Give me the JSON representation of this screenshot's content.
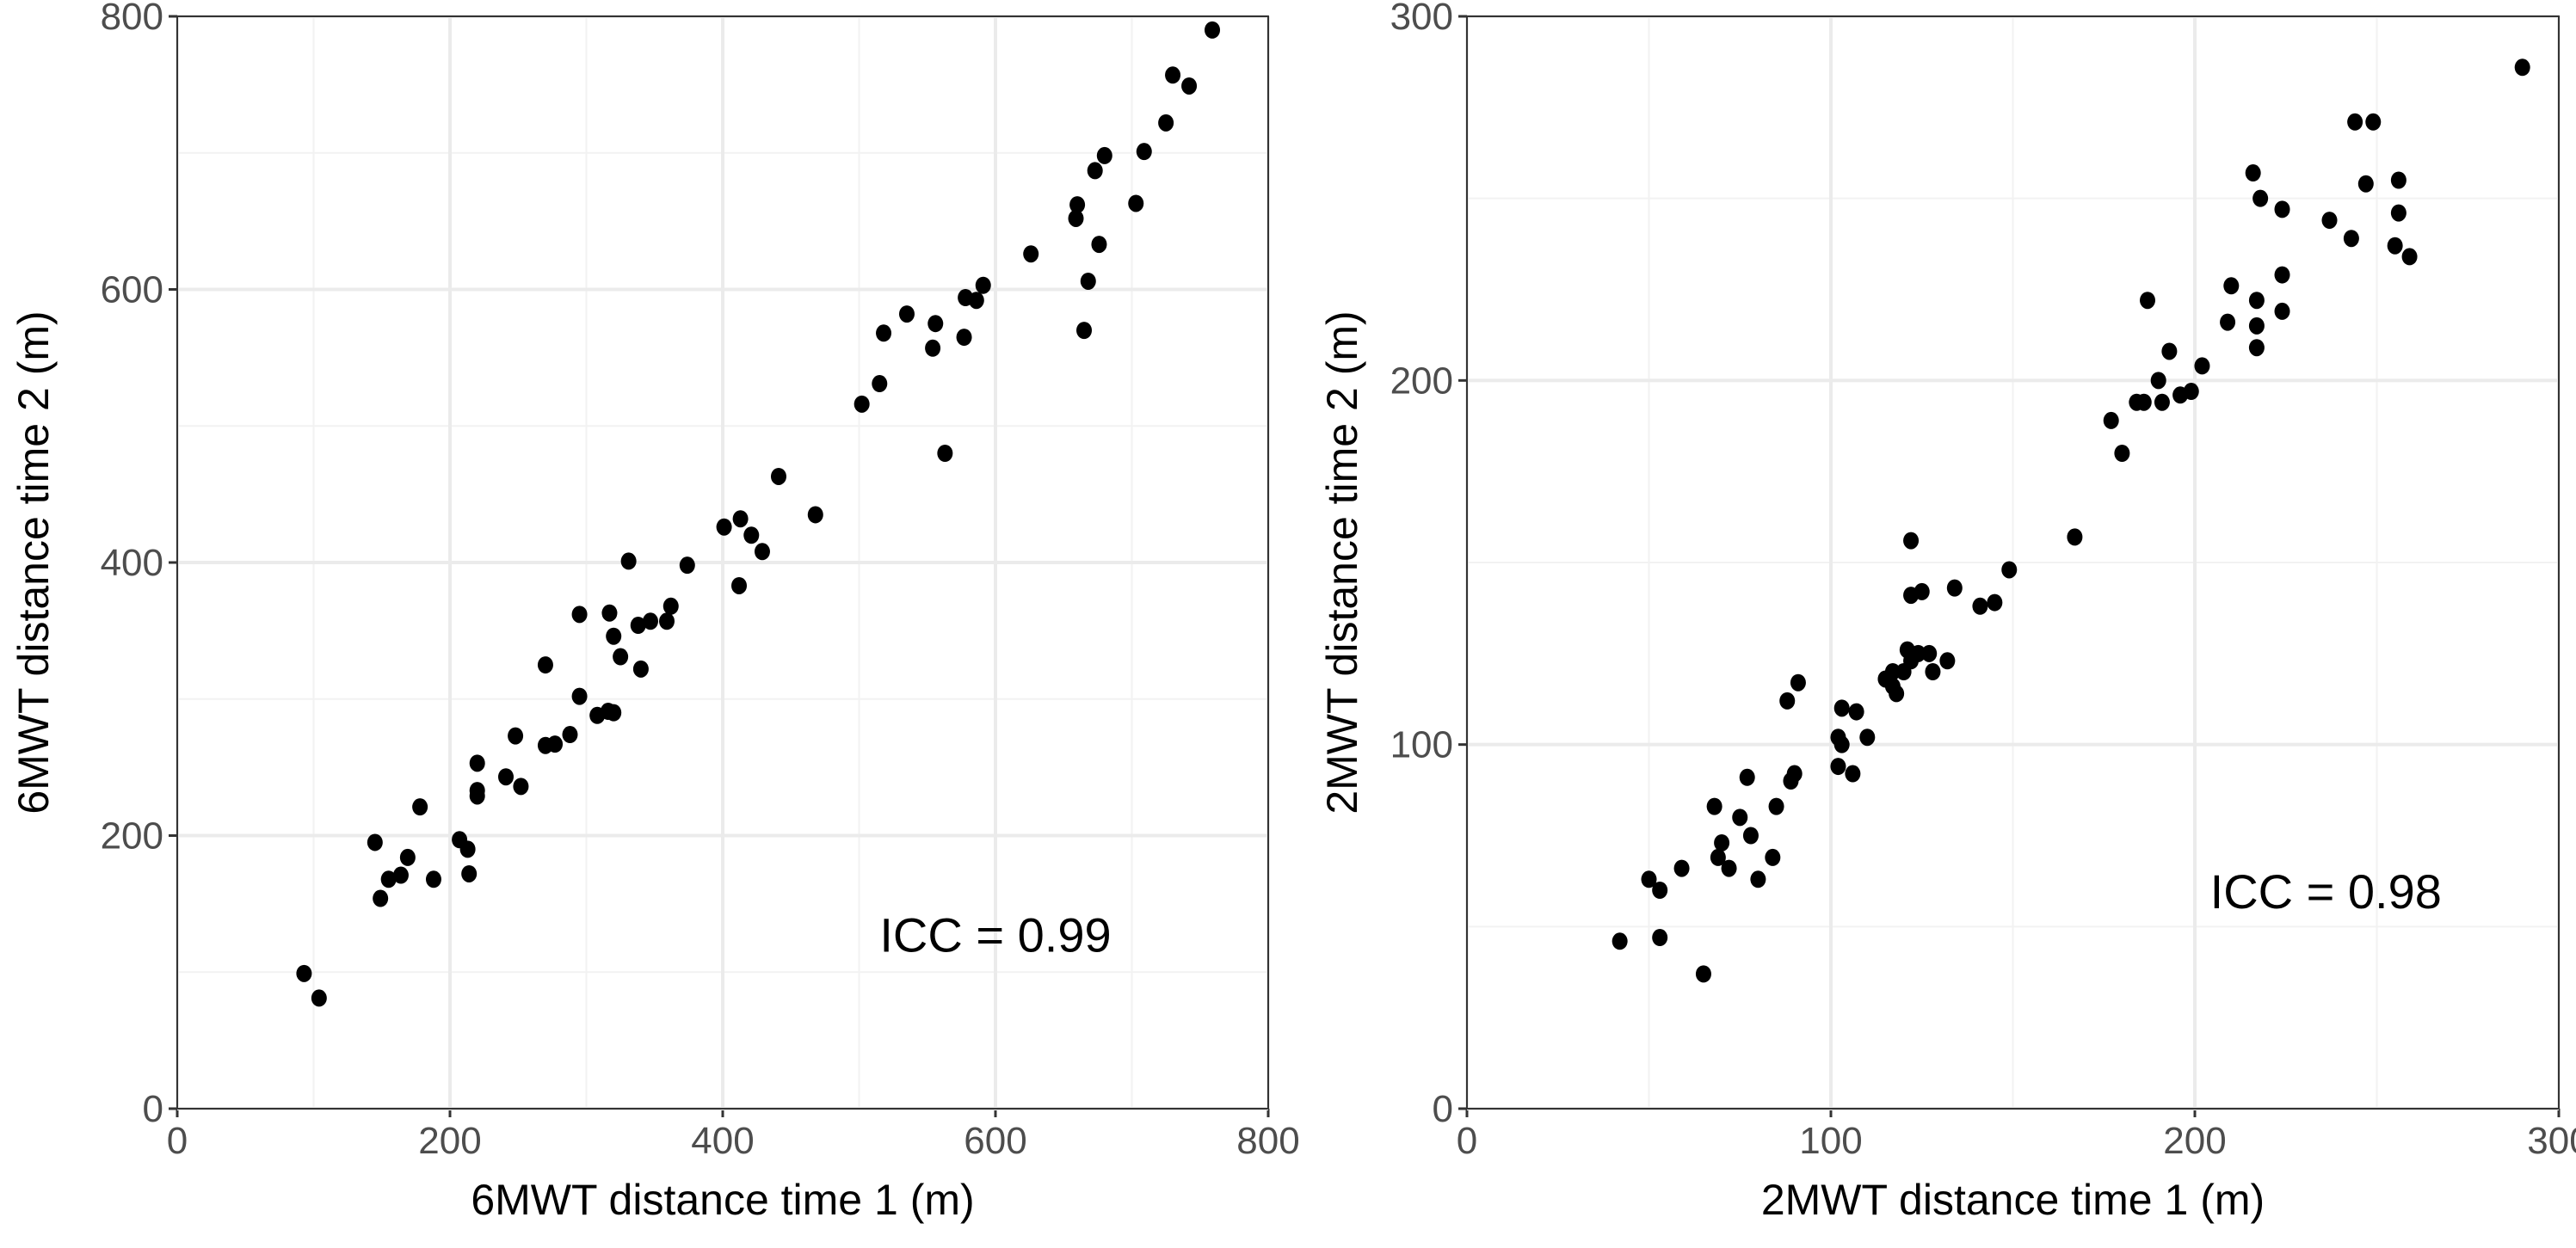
{
  "chart_data": [
    {
      "type": "scatter",
      "xlabel": "6MWT distance time 1 (m)",
      "ylabel": "6MWT distance time 2 (m)",
      "xlim": [
        0,
        800
      ],
      "ylim": [
        0,
        800
      ],
      "xticks": [
        0,
        200,
        400,
        600,
        800
      ],
      "yticks": [
        0,
        200,
        400,
        600,
        800
      ],
      "grid": true,
      "annotation": {
        "text": "ICC = 0.99",
        "x": 600,
        "y": 115
      },
      "point_color": "#000000",
      "points": [
        [
          93,
          99
        ],
        [
          104,
          81
        ],
        [
          145,
          195
        ],
        [
          149,
          154
        ],
        [
          155,
          168
        ],
        [
          164,
          171
        ],
        [
          169,
          184
        ],
        [
          178,
          221
        ],
        [
          188,
          168
        ],
        [
          207,
          197
        ],
        [
          213,
          190
        ],
        [
          214,
          172
        ],
        [
          220,
          253
        ],
        [
          220,
          233
        ],
        [
          220,
          229
        ],
        [
          241,
          243
        ],
        [
          248,
          273
        ],
        [
          252,
          236
        ],
        [
          270,
          325
        ],
        [
          270,
          266
        ],
        [
          277,
          267
        ],
        [
          288,
          274
        ],
        [
          295,
          362
        ],
        [
          295,
          302
        ],
        [
          308,
          288
        ],
        [
          316,
          291
        ],
        [
          320,
          290
        ],
        [
          317,
          363
        ],
        [
          320,
          346
        ],
        [
          325,
          331
        ],
        [
          331,
          401
        ],
        [
          338,
          354
        ],
        [
          340,
          322
        ],
        [
          347,
          357
        ],
        [
          359,
          357
        ],
        [
          362,
          368
        ],
        [
          374,
          398
        ],
        [
          401,
          426
        ],
        [
          413,
          432
        ],
        [
          412,
          383
        ],
        [
          421,
          420
        ],
        [
          429,
          408
        ],
        [
          441,
          463
        ],
        [
          468,
          435
        ],
        [
          502,
          516
        ],
        [
          515,
          531
        ],
        [
          518,
          568
        ],
        [
          535,
          582
        ],
        [
          554,
          557
        ],
        [
          556,
          575
        ],
        [
          563,
          480
        ],
        [
          577,
          565
        ],
        [
          578,
          594
        ],
        [
          586,
          592
        ],
        [
          591,
          603
        ],
        [
          626,
          626
        ],
        [
          660,
          662
        ],
        [
          659,
          652
        ],
        [
          665,
          570
        ],
        [
          668,
          606
        ],
        [
          673,
          687
        ],
        [
          676,
          633
        ],
        [
          680,
          698
        ],
        [
          703,
          663
        ],
        [
          709,
          701
        ],
        [
          725,
          722
        ],
        [
          730,
          757
        ],
        [
          742,
          749
        ],
        [
          759,
          790
        ]
      ]
    },
    {
      "type": "scatter",
      "xlabel": "2MWT distance time 1 (m)",
      "ylabel": "2MWT distance time 2 (m)",
      "xlim": [
        0,
        300
      ],
      "ylim": [
        0,
        300
      ],
      "xticks": [
        0,
        100,
        200,
        300
      ],
      "yticks": [
        0,
        100,
        200,
        300
      ],
      "grid": true,
      "annotation": {
        "text": "ICC = 0.98",
        "x": 236,
        "y": 55
      },
      "point_color": "#000000",
      "points": [
        [
          42,
          46
        ],
        [
          50,
          63
        ],
        [
          53,
          60
        ],
        [
          53,
          47
        ],
        [
          59,
          66
        ],
        [
          65,
          37
        ],
        [
          68,
          83
        ],
        [
          69,
          69
        ],
        [
          70,
          73
        ],
        [
          72,
          66
        ],
        [
          75,
          80
        ],
        [
          77,
          91
        ],
        [
          78,
          75
        ],
        [
          80,
          63
        ],
        [
          84,
          69
        ],
        [
          85,
          83
        ],
        [
          88,
          112
        ],
        [
          89,
          90
        ],
        [
          90,
          92
        ],
        [
          91,
          117
        ],
        [
          102,
          94
        ],
        [
          102,
          102
        ],
        [
          103,
          100
        ],
        [
          103,
          110
        ],
        [
          106,
          92
        ],
        [
          107,
          109
        ],
        [
          110,
          102
        ],
        [
          115,
          118
        ],
        [
          117,
          120
        ],
        [
          118,
          114
        ],
        [
          117,
          116
        ],
        [
          120,
          120
        ],
        [
          121,
          126
        ],
        [
          122,
          141
        ],
        [
          122,
          123
        ],
        [
          124,
          125
        ],
        [
          125,
          142
        ],
        [
          127,
          125
        ],
        [
          128,
          120
        ],
        [
          132,
          123
        ],
        [
          134,
          143
        ],
        [
          141,
          138
        ],
        [
          145,
          139
        ],
        [
          149,
          148
        ],
        [
          122,
          156
        ],
        [
          167,
          157
        ],
        [
          177,
          189
        ],
        [
          180,
          180
        ],
        [
          184,
          194
        ],
        [
          186,
          194
        ],
        [
          187,
          222
        ],
        [
          190,
          200
        ],
        [
          191,
          194
        ],
        [
          193,
          208
        ],
        [
          196,
          196
        ],
        [
          199,
          197
        ],
        [
          202,
          204
        ],
        [
          209,
          216
        ],
        [
          210,
          226
        ],
        [
          216,
          257
        ],
        [
          217,
          222
        ],
        [
          217,
          215
        ],
        [
          224,
          247
        ],
        [
          224,
          229
        ],
        [
          224,
          219
        ],
        [
          218,
          250
        ],
        [
          217,
          209
        ],
        [
          237,
          244
        ],
        [
          243,
          239
        ],
        [
          244,
          271
        ],
        [
          249,
          271
        ],
        [
          247,
          254
        ],
        [
          256,
          255
        ],
        [
          256,
          246
        ],
        [
          255,
          237
        ],
        [
          259,
          234
        ],
        [
          290,
          286
        ]
      ]
    }
  ]
}
